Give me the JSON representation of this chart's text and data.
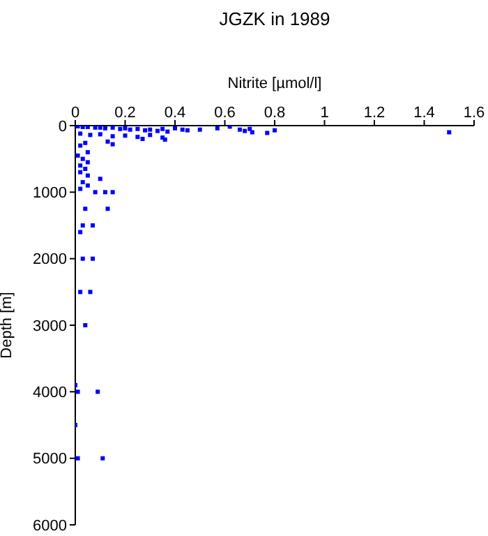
{
  "chart_data": {
    "type": "scatter",
    "title": "JGZK in 1989",
    "xlabel": "Nitrite [µmol/l]",
    "ylabel": "Depth [m]",
    "xlim": [
      0,
      1.6
    ],
    "xticks": [
      0,
      0.2,
      0.4,
      0.6,
      0.8,
      1,
      1.2,
      1.4,
      1.6
    ],
    "ylim": [
      6000,
      0
    ],
    "yticks": [
      0,
      1000,
      2000,
      3000,
      4000,
      5000,
      6000
    ],
    "marker": "square",
    "series": [
      {
        "color": "#0000ff",
        "x": [
          0.01,
          0.03,
          0.05,
          0.08,
          0.1,
          0.12,
          0.15,
          0.18,
          0.2,
          0.22,
          0.25,
          0.28,
          0.3,
          0.33,
          0.35,
          0.37,
          0.4,
          0.43,
          0.45,
          0.5,
          0.57,
          0.62,
          0.66,
          0.68,
          0.7,
          0.71,
          0.77,
          0.8,
          1.5,
          0.02,
          0.06,
          0.1,
          0.15,
          0.2,
          0.25,
          0.3,
          0.35,
          0.36,
          0.15,
          0.27,
          0.13,
          0.04,
          0.02,
          0.05,
          0.01,
          0.03,
          0.05,
          0.02,
          0.04,
          0.02,
          0.05,
          0.1,
          0.03,
          0.05,
          0.02,
          0.08,
          0.12,
          0.15,
          0.04,
          0.13,
          0.03,
          0.07,
          0.02,
          0.03,
          0.07,
          0.02,
          0.06,
          0.04,
          0.0,
          0.01,
          0.09,
          0.0,
          0.01,
          0.11
        ],
        "values": [
          10,
          20,
          20,
          30,
          30,
          40,
          30,
          50,
          40,
          60,
          50,
          70,
          60,
          80,
          50,
          90,
          40,
          60,
          70,
          60,
          40,
          15,
          60,
          80,
          50,
          100,
          110,
          70,
          100,
          120,
          140,
          130,
          160,
          150,
          170,
          140,
          180,
          210,
          280,
          200,
          240,
          260,
          300,
          400,
          450,
          500,
          550,
          600,
          650,
          700,
          750,
          800,
          850,
          900,
          950,
          1000,
          1000,
          1000,
          1250,
          1250,
          1500,
          1500,
          1600,
          2000,
          2000,
          2500,
          2500,
          3000,
          3900,
          4000,
          4000,
          4500,
          5000,
          5000
        ]
      }
    ]
  }
}
